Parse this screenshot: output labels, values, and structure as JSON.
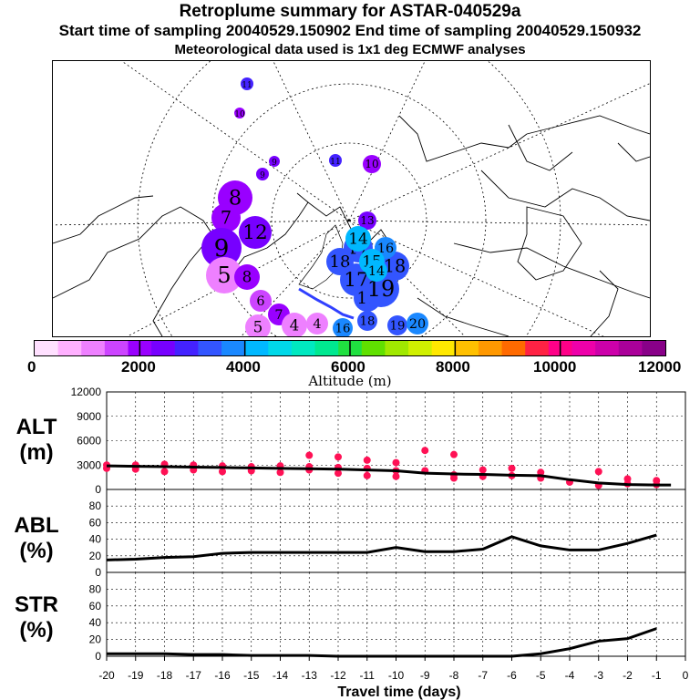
{
  "header": {
    "title": "Retroplume summary for ASTAR-040529a",
    "sampling": "Start time of sampling 20040529.150902     End time of sampling 20040529.150932",
    "met": "Meteorological data used is 1x1 deg ECMWF analyses"
  },
  "map": {
    "plume_labels": [
      "1",
      "2",
      "3",
      "4",
      "5",
      "6",
      "7",
      "8",
      "9",
      "10",
      "11",
      "12",
      "13",
      "14",
      "15",
      "16",
      "17",
      "18",
      "19",
      "20"
    ],
    "clusters": [
      {
        "label": "20",
        "alt": 3800
      },
      {
        "label": "19",
        "alt": 3500
      },
      {
        "label": "18",
        "alt": 3400
      },
      {
        "label": "17",
        "alt": 3300
      },
      {
        "label": "16",
        "alt": 3600
      },
      {
        "label": "15",
        "alt": 4200
      },
      {
        "label": "14",
        "alt": 4000
      },
      {
        "label": "13",
        "alt": 2600
      },
      {
        "label": "12",
        "alt": 2400
      },
      {
        "label": "11",
        "alt": 2800
      },
      {
        "label": "10",
        "alt": 2200
      },
      {
        "label": "9",
        "alt": 2500
      },
      {
        "label": "8",
        "alt": 2000
      },
      {
        "label": "7",
        "alt": 1800
      },
      {
        "label": "6",
        "alt": 1500
      },
      {
        "label": "5",
        "alt": 1200
      },
      {
        "label": "4",
        "alt": 1000
      },
      {
        "label": "3",
        "alt": 900
      },
      {
        "label": "2",
        "alt": 700
      },
      {
        "label": "1",
        "alt": 500
      }
    ]
  },
  "colorbar": {
    "label": "Altitude (m)",
    "ticks": [
      "0",
      "2000",
      "4000",
      "6000",
      "8000",
      "10000",
      "12000"
    ],
    "colors": [
      "#ffe0ff",
      "#ffb0ff",
      "#ee80ff",
      "#cc44ff",
      "#9900ff",
      "#7700ff",
      "#4422ff",
      "#3355ff",
      "#1a88ff",
      "#00b8ff",
      "#00d8e8",
      "#00e8c0",
      "#00e890",
      "#20e040",
      "#60e000",
      "#a0e800",
      "#d0f000",
      "#ffe800",
      "#ffc000",
      "#ff9800",
      "#ff6a00",
      "#ff2244",
      "#ff0088",
      "#ee00aa",
      "#cc00aa",
      "#aa0099",
      "#880088"
    ]
  },
  "panels": {
    "alt": {
      "line1": "ALT",
      "line2": "(m)"
    },
    "abl": {
      "line1": "ABL",
      "line2": "(%)"
    },
    "str": {
      "line1": "STR",
      "line2": "(%)"
    }
  },
  "xaxis": {
    "label": "Travel time (days)",
    "ticks": [
      "-20",
      "-19",
      "-18",
      "-17",
      "-16",
      "-15",
      "-14",
      "-13",
      "-12",
      "-11",
      "-10",
      "-9",
      "-8",
      "-7",
      "-6",
      "-5",
      "-4",
      "-3",
      "-2",
      "-1",
      "0"
    ]
  },
  "chart_data": [
    {
      "type": "line",
      "title": "ALT",
      "ylabel": "ALT (m)",
      "xlabel": "Travel time (days)",
      "xlim": [
        -20,
        0
      ],
      "ylim": [
        0,
        12000
      ],
      "yticks": [
        0,
        3000,
        6000,
        9000,
        12000
      ],
      "ytick_labels": [
        "0",
        "3000",
        "6000",
        "9000",
        "12000"
      ],
      "x": [
        -20,
        -19,
        -18,
        -17,
        -16,
        -15,
        -14,
        -13,
        -12,
        -11,
        -10,
        -9,
        -8,
        -7,
        -6,
        -5,
        -4,
        -3,
        -2,
        -1,
        -0.5
      ],
      "series": [
        {
          "name": "mean altitude",
          "values": [
            2900,
            2850,
            2800,
            2750,
            2700,
            2650,
            2600,
            2550,
            2500,
            2400,
            2300,
            2000,
            1900,
            1850,
            1750,
            1700,
            1200,
            800,
            600,
            550,
            550
          ]
        },
        {
          "name": "cluster altitudes",
          "points": [
            [
              -20,
              3000
            ],
            [
              -20,
              2600
            ],
            [
              -19,
              3000
            ],
            [
              -19,
              2500
            ],
            [
              -18,
              3100
            ],
            [
              -18,
              2200
            ],
            [
              -17,
              3000
            ],
            [
              -17,
              2400
            ],
            [
              -16,
              2900
            ],
            [
              -16,
              2200
            ],
            [
              -15,
              2800
            ],
            [
              -15,
              2300
            ],
            [
              -14,
              2900
            ],
            [
              -14,
              2100
            ],
            [
              -13,
              4200
            ],
            [
              -13,
              2800
            ],
            [
              -13,
              2400
            ],
            [
              -12,
              4000
            ],
            [
              -12,
              2700
            ],
            [
              -12,
              2000
            ],
            [
              -11,
              3600
            ],
            [
              -11,
              2600
            ],
            [
              -11,
              1700
            ],
            [
              -10,
              3300
            ],
            [
              -10,
              2300
            ],
            [
              -10,
              1600
            ],
            [
              -9,
              4800
            ],
            [
              -9,
              2300
            ],
            [
              -8,
              4300
            ],
            [
              -8,
              1800
            ],
            [
              -8,
              1400
            ],
            [
              -7,
              2400
            ],
            [
              -7,
              1600
            ],
            [
              -6,
              2600
            ],
            [
              -6,
              1700
            ],
            [
              -5,
              2100
            ],
            [
              -5,
              1400
            ],
            [
              -4,
              900
            ],
            [
              -3,
              2200
            ],
            [
              -3,
              500
            ],
            [
              -2,
              1300
            ],
            [
              -2,
              700
            ],
            [
              -1,
              1100
            ],
            [
              -1,
              600
            ]
          ]
        }
      ]
    },
    {
      "type": "line",
      "title": "ABL",
      "ylabel": "ABL (%)",
      "xlabel": "Travel time (days)",
      "xlim": [
        -20,
        0
      ],
      "ylim": [
        0,
        100
      ],
      "yticks": [
        0,
        20,
        40,
        60,
        80
      ],
      "ytick_labels": [
        "0",
        "20",
        "40",
        "60",
        "80"
      ],
      "x": [
        -20,
        -19,
        -18,
        -17,
        -16,
        -15,
        -14,
        -13,
        -12,
        -11,
        -10,
        -9,
        -8,
        -7,
        -6,
        -5,
        -4,
        -3,
        -2,
        -1
      ],
      "values": [
        15,
        16,
        18,
        19,
        23,
        24,
        24,
        24,
        24,
        24,
        30,
        25,
        25,
        28,
        43,
        32,
        27,
        27,
        35,
        45
      ]
    },
    {
      "type": "line",
      "title": "STR",
      "ylabel": "STR (%)",
      "xlabel": "Travel time (days)",
      "xlim": [
        -20,
        0
      ],
      "ylim": [
        0,
        100
      ],
      "yticks": [
        0,
        20,
        40,
        60,
        80
      ],
      "ytick_labels": [
        "0",
        "20",
        "40",
        "60",
        "80"
      ],
      "x": [
        -20,
        -19,
        -18,
        -17,
        -16,
        -15,
        -14,
        -13,
        -12,
        -11,
        -10,
        -9,
        -8,
        -7,
        -6,
        -5,
        -4,
        -3,
        -2,
        -1
      ],
      "values": [
        3,
        3,
        3,
        2,
        2,
        1,
        1,
        1,
        0,
        0,
        0,
        0,
        0,
        0,
        0,
        3,
        9,
        18,
        21,
        33
      ]
    }
  ]
}
